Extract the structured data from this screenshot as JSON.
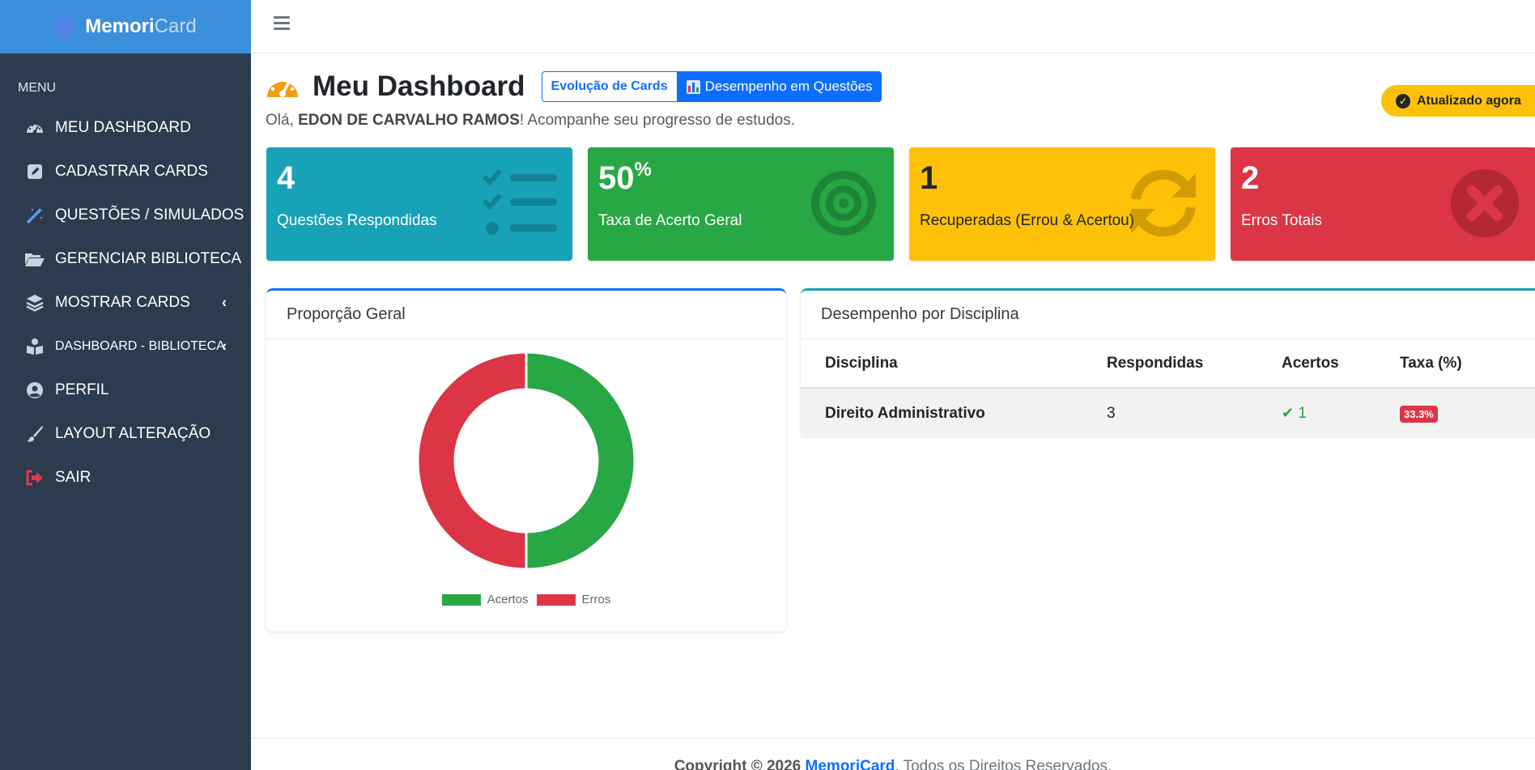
{
  "brand": {
    "bold": "Memori",
    "light": "Card"
  },
  "sidebar": {
    "header": "MENU",
    "items": [
      {
        "label": "MEU DASHBOARD",
        "icon": "gauge-icon"
      },
      {
        "label": "CADASTRAR CARDS",
        "icon": "edit-icon"
      },
      {
        "label": "QUESTÕES / SIMULADOS",
        "icon": "magic-wand-icon"
      },
      {
        "label": "GERENCIAR BIBLIOTECA",
        "icon": "folder-open-icon"
      },
      {
        "label": "MOSTRAR CARDS",
        "icon": "layers-icon",
        "chevron": "‹"
      },
      {
        "label": "DASHBOARD - BIBLIOTECA",
        "icon": "book-reader-icon",
        "chevron": "‹"
      },
      {
        "label": "PERFIL",
        "icon": "user-circle-icon"
      },
      {
        "label": "LAYOUT ALTERAÇÃO",
        "icon": "paint-brush-icon"
      },
      {
        "label": "SAIR",
        "icon": "sign-out-icon"
      }
    ]
  },
  "header": {
    "title": "Meu Dashboard",
    "tab_evolucao": "Evolução de Cards",
    "tab_desempenho": "Desempenho em Questões",
    "greeting_prefix": "Olá, ",
    "user_name": "EDON DE CARVALHO RAMOS",
    "greeting_suffix": "! Acompanhe seu progresso de estudos.",
    "updated": "Atualizado agora"
  },
  "stats": [
    {
      "value": "4",
      "label": "Questões Respondidas",
      "color": "#17a2b8",
      "icon": "tasks-icon"
    },
    {
      "value": "50",
      "suffix": "%",
      "label": "Taxa de Acerto Geral",
      "color": "#28a745",
      "icon": "target-icon"
    },
    {
      "value": "1",
      "label": "Recuperadas (Errou & Acertou)",
      "color": "#ffc107",
      "icon": "sync-icon"
    },
    {
      "value": "2",
      "label": "Erros Totais",
      "color": "#dc3545",
      "icon": "times-circle-icon"
    }
  ],
  "proportion": {
    "title": "Proporção Geral",
    "legend": [
      "Acertos",
      "Erros"
    ]
  },
  "chart_data": {
    "type": "pie",
    "labels": [
      "Acertos",
      "Erros"
    ],
    "values": [
      2,
      2
    ],
    "colors": [
      "#28a745",
      "#dc3545"
    ],
    "donut": true,
    "legend": "bottom"
  },
  "discipline": {
    "title": "Desempenho por Disciplina",
    "columns": [
      "Disciplina",
      "Respondidas",
      "Acertos",
      "Taxa (%)"
    ],
    "rows": [
      {
        "disciplina": "Direito Administrativo",
        "respondidas": "3",
        "acertos": "1",
        "taxa": "33.3%"
      }
    ]
  },
  "footer": {
    "copyright": "Copyright © 2026 ",
    "brand": "MemoriCard",
    "rights": ". Todos os Direitos Reservados."
  }
}
